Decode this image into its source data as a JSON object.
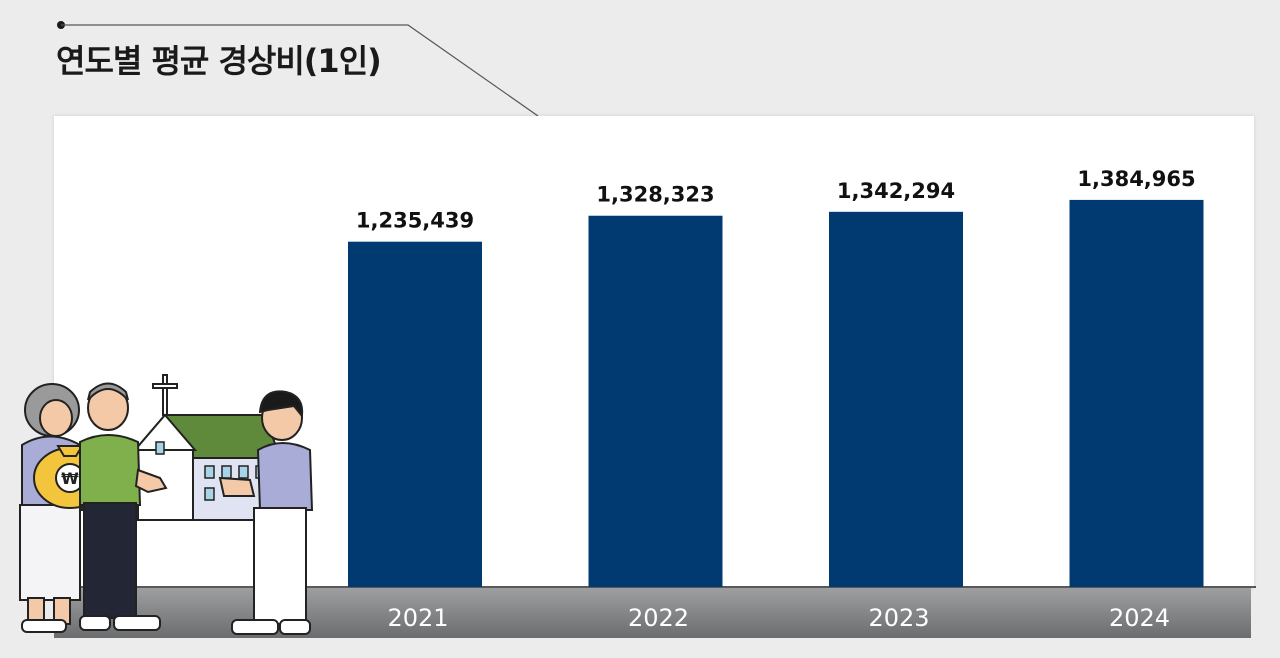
{
  "title": "연도별 평균 경상비(1인)",
  "colors": {
    "bar": "#003a70",
    "background": "#ebeceb",
    "panel": "#ffffff",
    "axis_band_top": "#9d9fa0",
    "axis_band_bottom": "#6b6d6e",
    "tick_label": "#ffffff",
    "value_label": "#111111"
  },
  "illustration": {
    "icons": [
      "elderly-woman-icon",
      "elderly-man-icon",
      "money-bag-icon",
      "church-icon",
      "young-man-icon"
    ],
    "money_bag_symbol": "₩"
  },
  "chart_data": {
    "type": "bar",
    "title": "연도별 평균 경상비(1인)",
    "categories": [
      "2021",
      "2022",
      "2023",
      "2024"
    ],
    "values": [
      1235439,
      1328323,
      1342294,
      1384965
    ],
    "value_labels": [
      "1,235,439",
      "1,328,323",
      "1,342,294",
      "1,384,965"
    ],
    "xlabel": "",
    "ylabel": "",
    "ylim": [
      0,
      1600000
    ],
    "grid": false,
    "legend": "none"
  }
}
